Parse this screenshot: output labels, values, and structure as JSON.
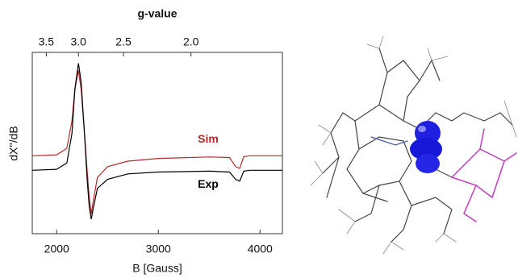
{
  "chart_data": {
    "type": "line",
    "title": "g-value",
    "x_label": "B [Gauss]",
    "y_label": "dX''/dB",
    "xlim": [
      1760,
      4220
    ],
    "xticks": [
      2000,
      3000,
      4000
    ],
    "x2scale": "reciprocal",
    "x2lim": [
      3.774,
      1.574
    ],
    "x2ticks": [
      {
        "value": 3.5,
        "label": "3.5"
      },
      {
        "value": 3,
        "label": "3.0"
      },
      {
        "value": 2.5,
        "label": "2.5"
      },
      {
        "value": 2,
        "label": "2.0"
      }
    ],
    "ylim": [
      0,
      100
    ],
    "x": [
      1760,
      2000,
      2100,
      2150,
      2180,
      2214,
      2240,
      2270,
      2300,
      2320,
      2340,
      2360,
      2400,
      2500,
      2700,
      3000,
      3500,
      3700,
      3760,
      3800,
      3840,
      3900,
      4220
    ],
    "series": [
      {
        "name": "Sim",
        "color": "#b22a2a",
        "values": [
          43,
          43.5,
          47,
          62,
          80,
          90,
          80,
          58,
          35,
          20,
          11,
          18,
          31,
          37,
          40,
          41.5,
          42.3,
          42,
          37,
          36,
          42.5,
          43,
          43
        ]
      },
      {
        "name": "Exp",
        "color": "#000000",
        "values": [
          35,
          35.5,
          39,
          55,
          80,
          94,
          84,
          58,
          30,
          15,
          8,
          14,
          25,
          30,
          33,
          34,
          34.5,
          34,
          30,
          29,
          34.5,
          35,
          35
        ]
      }
    ]
  }
}
